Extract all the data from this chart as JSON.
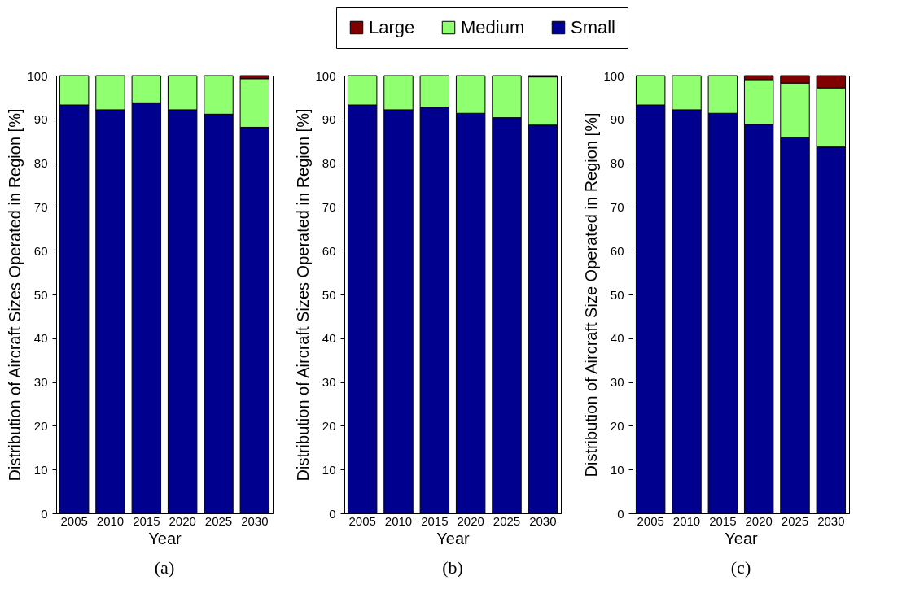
{
  "chart_data": [
    {
      "type": "bar",
      "title": "(a)",
      "xlabel": "Year",
      "ylabel": "Distribution of Aircraft Sizes Operated in Region [%]",
      "stacked": true,
      "legend": "top",
      "categories": [
        "2005",
        "2010",
        "2015",
        "2020",
        "2025",
        "2030"
      ],
      "ylim": [
        0,
        100
      ],
      "yticks": [
        0,
        10,
        20,
        30,
        40,
        50,
        60,
        70,
        80,
        90,
        100
      ],
      "series": [
        {
          "name": "Small",
          "color": "#00008f",
          "values": [
            93.3,
            92.2,
            93.8,
            92.2,
            91.2,
            88.2
          ]
        },
        {
          "name": "Medium",
          "color": "#90ff70",
          "values": [
            6.7,
            7.8,
            6.2,
            7.8,
            8.8,
            11.1
          ]
        },
        {
          "name": "Large",
          "color": "#800000",
          "values": [
            null,
            null,
            null,
            null,
            null,
            0.7
          ]
        }
      ]
    },
    {
      "type": "bar",
      "title": "(b)",
      "xlabel": "Year",
      "ylabel": "Distribution of Aircraft Sizes Operated in Region [%]",
      "stacked": true,
      "legend": "top",
      "categories": [
        "2005",
        "2010",
        "2015",
        "2020",
        "2025",
        "2030"
      ],
      "ylim": [
        0,
        100
      ],
      "yticks": [
        0,
        10,
        20,
        30,
        40,
        50,
        60,
        70,
        80,
        90,
        100
      ],
      "series": [
        {
          "name": "Small",
          "color": "#00008f",
          "values": [
            93.3,
            92.2,
            92.8,
            91.4,
            90.4,
            88.7
          ]
        },
        {
          "name": "Medium",
          "color": "#90ff70",
          "values": [
            6.7,
            7.8,
            7.2,
            8.6,
            9.6,
            11.0
          ]
        },
        {
          "name": "Large",
          "color": "#800000",
          "values": [
            null,
            null,
            null,
            null,
            null,
            0.3
          ]
        }
      ]
    },
    {
      "type": "bar",
      "title": "(c)",
      "xlabel": "Year",
      "ylabel": "Distribution of Aircraft Size Operated in Region [%]",
      "stacked": true,
      "legend": "top",
      "categories": [
        "2005",
        "2010",
        "2015",
        "2020",
        "2025",
        "2030"
      ],
      "ylim": [
        0,
        100
      ],
      "yticks": [
        0,
        10,
        20,
        30,
        40,
        50,
        60,
        70,
        80,
        90,
        100
      ],
      "series": [
        {
          "name": "Small",
          "color": "#00008f",
          "values": [
            93.3,
            92.2,
            91.4,
            88.9,
            85.8,
            83.7
          ]
        },
        {
          "name": "Medium",
          "color": "#90ff70",
          "values": [
            6.7,
            7.8,
            8.6,
            10.2,
            12.5,
            13.5
          ]
        },
        {
          "name": "Large",
          "color": "#800000",
          "values": [
            null,
            null,
            null,
            0.9,
            1.7,
            2.8
          ]
        }
      ]
    }
  ]
}
